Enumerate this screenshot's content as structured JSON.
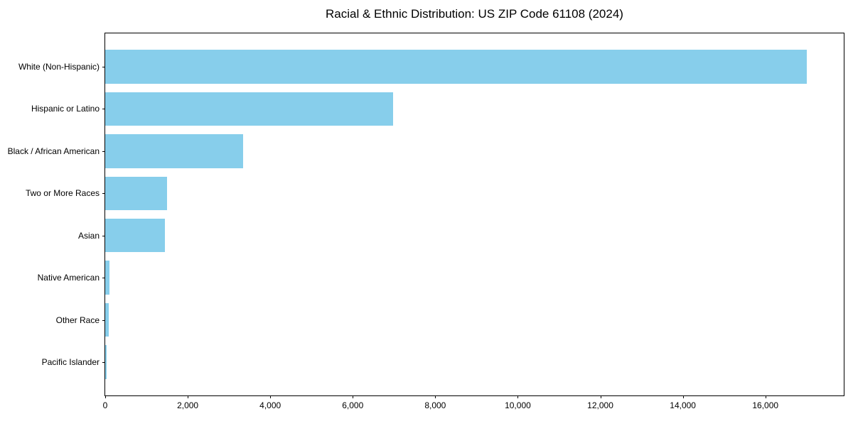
{
  "page": {
    "background_color": "#ffffff"
  },
  "chart_data": {
    "type": "bar",
    "orientation": "horizontal",
    "title": "Racial & Ethnic Distribution: US ZIP Code 61108 (2024)",
    "xlabel": "",
    "ylabel": "",
    "categories": [
      "White (Non-Hispanic)",
      "Hispanic or Latino",
      "Black / African American",
      "Two or More Races",
      "Asian",
      "Native American",
      "Other Race",
      "Pacific Islander"
    ],
    "values": [
      17000,
      6970,
      3340,
      1500,
      1440,
      95,
      85,
      40
    ],
    "xlim": [
      0,
      17900
    ],
    "xticks": [
      0,
      2000,
      4000,
      6000,
      8000,
      10000,
      12000,
      14000,
      16000
    ],
    "xtick_labels": [
      "0",
      "2,000",
      "4,000",
      "6,000",
      "8,000",
      "10,000",
      "12,000",
      "14,000",
      "16,000"
    ],
    "bar_color": "#87CEEB",
    "axis_color": "#000000",
    "text_color": "#000000",
    "grid": false,
    "legend": null
  }
}
